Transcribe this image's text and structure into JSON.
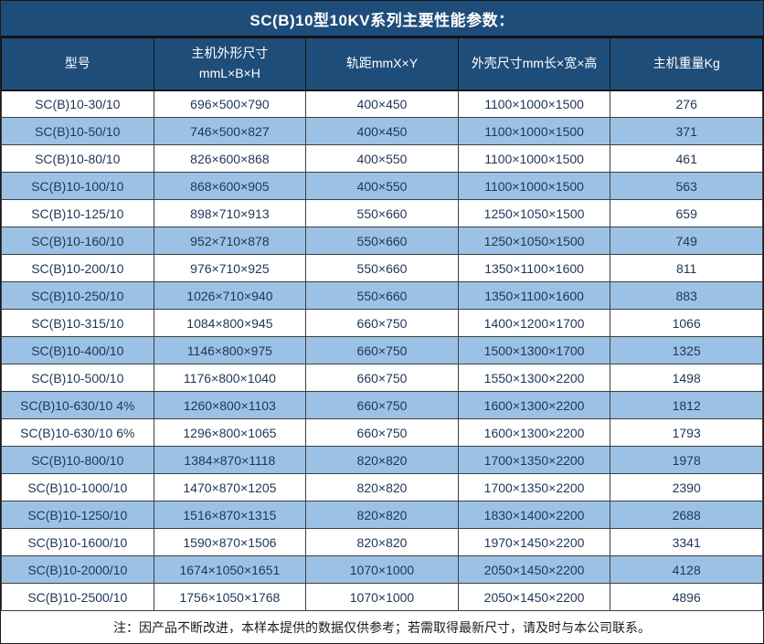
{
  "title": "SC(B)10型10KV系列主要性能参数：",
  "note": "注：因产品不断改进，本样本提供的数据仅供参考；若需取得最新尺寸，请及时与本公司联系。",
  "colors": {
    "header_bg": "#1F4D7A",
    "header_text": "#FFFFFF",
    "row_bg": "#FFFFFF",
    "row_alt_bg": "#9BC2E5",
    "body_text": "#1F3556",
    "border": "#3F3F3F"
  },
  "table": {
    "columns": [
      {
        "id": "model",
        "lines": [
          "型号"
        ]
      },
      {
        "id": "host-dimensions",
        "lines": [
          "主机外形尺寸",
          "mmL×B×H"
        ]
      },
      {
        "id": "rail-gauge",
        "lines": [
          "轨距mmX×Y"
        ]
      },
      {
        "id": "enclosure-dimensions",
        "lines": [
          "外壳尺寸mm长×宽×高"
        ]
      },
      {
        "id": "host-weight",
        "lines": [
          "主机重量Kg"
        ]
      }
    ],
    "rows": [
      [
        "SC(B)10-30/10",
        "696×500×790",
        "400×450",
        "1100×1000×1500",
        "276"
      ],
      [
        "SC(B)10-50/10",
        "746×500×827",
        "400×450",
        "1100×1000×1500",
        "371"
      ],
      [
        "SC(B)10-80/10",
        "826×600×868",
        "400×550",
        "1100×1000×1500",
        "461"
      ],
      [
        "SC(B)10-100/10",
        "868×600×905",
        "400×550",
        "1100×1000×1500",
        "563"
      ],
      [
        "SC(B)10-125/10",
        "898×710×913",
        "550×660",
        "1250×1050×1500",
        "659"
      ],
      [
        "SC(B)10-160/10",
        "952×710×878",
        "550×660",
        "1250×1050×1500",
        "749"
      ],
      [
        "SC(B)10-200/10",
        "976×710×925",
        "550×660",
        "1350×1100×1600",
        "811"
      ],
      [
        "SC(B)10-250/10",
        "1026×710×940",
        "550×660",
        "1350×1100×1600",
        "883"
      ],
      [
        "SC(B)10-315/10",
        "1084×800×945",
        "660×750",
        "1400×1200×1700",
        "1066"
      ],
      [
        "SC(B)10-400/10",
        "1146×800×975",
        "660×750",
        "1500×1300×1700",
        "1325"
      ],
      [
        "SC(B)10-500/10",
        "1176×800×1040",
        "660×750",
        "1550×1300×2200",
        "1498"
      ],
      [
        "SC(B)10-630/10 4%",
        "1260×800×1103",
        "660×750",
        "1600×1300×2200",
        "1812"
      ],
      [
        "SC(B)10-630/10 6%",
        "1296×800×1065",
        "660×750",
        "1600×1300×2200",
        "1793"
      ],
      [
        "SC(B)10-800/10",
        "1384×870×1118",
        "820×820",
        "1700×1350×2200",
        "1978"
      ],
      [
        "SC(B)10-1000/10",
        "1470×870×1205",
        "820×820",
        "1700×1350×2200",
        "2390"
      ],
      [
        "SC(B)10-1250/10",
        "1516×870×1315",
        "820×820",
        "1830×1400×2200",
        "2688"
      ],
      [
        "SC(B)10-1600/10",
        "1590×870×1506",
        "820×820",
        "1970×1450×2200",
        "3341"
      ],
      [
        "SC(B)10-2000/10",
        "1674×1050×1651",
        "1070×1000",
        "2050×1450×2200",
        "4128"
      ],
      [
        "SC(B)10-2500/10",
        "1756×1050×1768",
        "1070×1000",
        "2050×1450×2200",
        "4896"
      ]
    ]
  }
}
